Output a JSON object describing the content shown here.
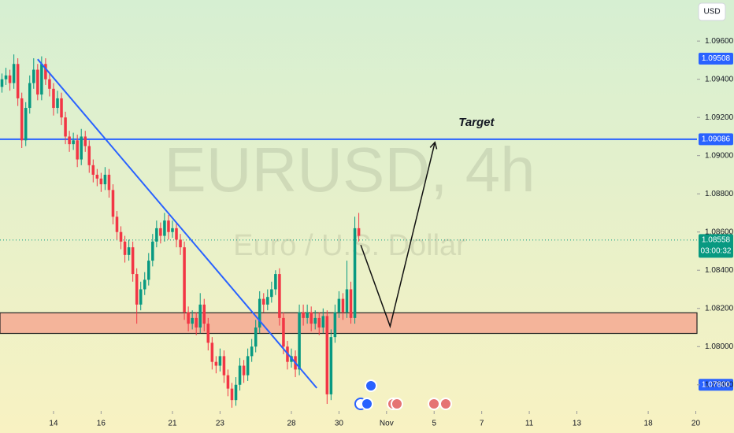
{
  "chart_data": {
    "type": "candlestick",
    "watermark": "EURUSD, 4h",
    "watermark_sub": "Euro / U.S. Dollar",
    "currency": "USD",
    "annotation": "Target",
    "countdown": "03:00:32",
    "up_color": "#089981",
    "down_color": "#f23645",
    "xlim": [
      -13.5,
      162.3
    ],
    "xticks": [
      {
        "value": 0,
        "label": "14"
      },
      {
        "value": 12,
        "label": "16"
      },
      {
        "value": 30,
        "label": "21"
      },
      {
        "value": 42,
        "label": "23"
      },
      {
        "value": 60,
        "label": "28"
      },
      {
        "value": 72,
        "label": "30"
      },
      {
        "value": 84,
        "label": "Nov"
      },
      {
        "value": 96,
        "label": "5"
      },
      {
        "value": 108,
        "label": "7"
      },
      {
        "value": 120,
        "label": "11"
      },
      {
        "value": 132,
        "label": "13"
      },
      {
        "value": 150,
        "label": "18"
      },
      {
        "value": 162,
        "label": "20"
      }
    ],
    "ylim": [
      1.07663,
      1.09815
    ],
    "yticks": [
      {
        "value": 1.078,
        "label": "1.07800"
      },
      {
        "value": 1.08,
        "label": "1.08000"
      },
      {
        "value": 1.082,
        "label": "1.08200"
      },
      {
        "value": 1.084,
        "label": "1.08400"
      },
      {
        "value": 1.086,
        "label": "1.08600"
      },
      {
        "value": 1.088,
        "label": "1.08800"
      },
      {
        "value": 1.09,
        "label": "1.09000"
      },
      {
        "value": 1.092,
        "label": "1.09200"
      },
      {
        "value": 1.094,
        "label": "1.09400"
      },
      {
        "value": 1.096,
        "label": "1.09600"
      }
    ],
    "price_tags": [
      {
        "value": 1.09508,
        "label": "1.09508",
        "color": "#2962ff"
      },
      {
        "value": 1.09086,
        "label": "1.09086",
        "color": "#2962ff"
      },
      {
        "value": 1.08558,
        "label": "1.08558",
        "color": "#089981"
      },
      {
        "value": 1.078,
        "label": "1.07800",
        "color": "#2962ff"
      }
    ],
    "hline": {
      "value": 1.09086,
      "color": "#2962ff"
    },
    "zone": {
      "from": 1.08069,
      "to": 1.08177,
      "color": "#f4b49a"
    },
    "trendline": {
      "x": [
        -4,
        66.4
      ],
      "y": [
        1.09505,
        1.07783
      ],
      "color": "#2962ff"
    },
    "projection": {
      "x": [
        77.5,
        84.9,
        96.2
      ],
      "y": [
        1.08532,
        1.08106,
        1.0907
      ]
    },
    "x": [
      -13,
      -12,
      -11,
      -10,
      -9,
      -8,
      -7,
      -6,
      -5,
      -4,
      -3,
      -2,
      -1,
      0,
      1,
      2,
      3,
      4,
      5,
      6,
      7,
      8,
      9,
      10,
      11,
      12,
      13,
      14,
      15,
      16,
      17,
      18,
      19,
      20,
      21,
      22,
      23,
      24,
      25,
      26,
      27,
      28,
      29,
      30,
      31,
      32,
      33,
      34,
      35,
      36,
      37,
      38,
      39,
      40,
      41,
      42,
      43,
      44,
      45,
      46,
      47,
      48,
      49,
      50,
      51,
      52,
      53,
      54,
      55,
      56,
      57,
      58,
      59,
      60,
      61,
      62,
      63,
      64,
      65,
      66,
      67,
      68,
      69,
      70,
      71,
      72,
      73,
      74,
      75,
      76,
      77
    ],
    "ohlc": [
      [
        1.0936,
        1.0943,
        1.0933,
        1.094
      ],
      [
        1.094,
        1.0946,
        1.0937,
        1.0942
      ],
      [
        1.0942,
        1.0945,
        1.0934,
        1.0938
      ],
      [
        1.0938,
        1.0953,
        1.0935,
        1.0948
      ],
      [
        1.0948,
        1.0951,
        1.0926,
        1.093
      ],
      [
        1.093,
        1.0933,
        1.0904,
        1.0908
      ],
      [
        1.0908,
        1.0928,
        1.0905,
        1.0925
      ],
      [
        1.0925,
        1.0942,
        1.0922,
        1.0938
      ],
      [
        1.0938,
        1.0951,
        1.0935,
        1.0945
      ],
      [
        1.0945,
        1.0948,
        1.0929,
        1.0932
      ],
      [
        1.0932,
        1.0952,
        1.0929,
        1.0948
      ],
      [
        1.0948,
        1.0951,
        1.0937,
        1.094
      ],
      [
        1.094,
        1.0943,
        1.0931,
        1.0935
      ],
      [
        1.0935,
        1.0938,
        1.0921,
        1.0925
      ],
      [
        1.0925,
        1.0934,
        1.0922,
        1.093
      ],
      [
        1.093,
        1.0933,
        1.0916,
        1.092
      ],
      [
        1.092,
        1.0923,
        1.0906,
        1.091
      ],
      [
        1.091,
        1.0913,
        1.0902,
        1.0906
      ],
      [
        1.0906,
        1.0912,
        1.0903,
        1.0908
      ],
      [
        1.0908,
        1.0911,
        1.0894,
        1.0898
      ],
      [
        1.0898,
        1.0914,
        1.0895,
        1.091
      ],
      [
        1.091,
        1.0913,
        1.0902,
        1.0905
      ],
      [
        1.0905,
        1.0908,
        1.0891,
        1.0895
      ],
      [
        1.0895,
        1.0898,
        1.0886,
        1.089
      ],
      [
        1.089,
        1.0893,
        1.0884,
        1.0888
      ],
      [
        1.0888,
        1.0891,
        1.0881,
        1.0885
      ],
      [
        1.0885,
        1.0894,
        1.0882,
        1.089
      ],
      [
        1.089,
        1.0893,
        1.0878,
        1.0882
      ],
      [
        1.0882,
        1.0885,
        1.0864,
        1.0868
      ],
      [
        1.0868,
        1.0871,
        1.0856,
        1.086
      ],
      [
        1.086,
        1.0863,
        1.0851,
        1.0855
      ],
      [
        1.0855,
        1.0858,
        1.0844,
        1.0848
      ],
      [
        1.0848,
        1.0856,
        1.0845,
        1.0852
      ],
      [
        1.0852,
        1.0855,
        1.0834,
        1.0838
      ],
      [
        1.0838,
        1.0841,
        1.0812,
        1.0822
      ],
      [
        1.0822,
        1.0834,
        1.0819,
        1.083
      ],
      [
        1.083,
        1.0839,
        1.0827,
        1.0835
      ],
      [
        1.0835,
        1.0849,
        1.0832,
        1.0845
      ],
      [
        1.0845,
        1.0859,
        1.0842,
        1.0855
      ],
      [
        1.0855,
        1.0866,
        1.0852,
        1.0862
      ],
      [
        1.0862,
        1.0865,
        1.0854,
        1.0858
      ],
      [
        1.0858,
        1.087,
        1.0855,
        1.0866
      ],
      [
        1.0866,
        1.0869,
        1.0856,
        1.086
      ],
      [
        1.086,
        1.0866,
        1.0857,
        1.0862
      ],
      [
        1.0862,
        1.0865,
        1.0852,
        1.0856
      ],
      [
        1.0856,
        1.0859,
        1.0848,
        1.0852
      ],
      [
        1.0852,
        1.0855,
        1.0814,
        1.0818
      ],
      [
        1.0818,
        1.0821,
        1.0808,
        1.0812
      ],
      [
        1.0812,
        1.0819,
        1.0809,
        1.0815
      ],
      [
        1.0815,
        1.0818,
        1.0806,
        1.081
      ],
      [
        1.081,
        1.0828,
        1.0807,
        1.0822
      ],
      [
        1.0822,
        1.0825,
        1.0808,
        1.0812
      ],
      [
        1.0812,
        1.0815,
        1.0798,
        1.0802
      ],
      [
        1.0802,
        1.0805,
        1.0788,
        1.0792
      ],
      [
        1.0792,
        1.0795,
        1.0786,
        1.079
      ],
      [
        1.079,
        1.0799,
        1.0787,
        1.0795
      ],
      [
        1.0795,
        1.0798,
        1.0781,
        1.0785
      ],
      [
        1.0785,
        1.0788,
        1.0774,
        1.0778
      ],
      [
        1.0778,
        1.0781,
        1.0768,
        1.0772
      ],
      [
        1.0772,
        1.0784,
        1.0769,
        1.078
      ],
      [
        1.078,
        1.0794,
        1.0777,
        1.079
      ],
      [
        1.079,
        1.0793,
        1.0781,
        1.0785
      ],
      [
        1.0785,
        1.0799,
        1.0782,
        1.0795
      ],
      [
        1.0795,
        1.0804,
        1.0792,
        1.08
      ],
      [
        1.08,
        1.0814,
        1.0797,
        1.081
      ],
      [
        1.081,
        1.0829,
        1.0807,
        1.0825
      ],
      [
        1.0825,
        1.0828,
        1.0818,
        1.0822
      ],
      [
        1.0822,
        1.083,
        1.0819,
        1.0826
      ],
      [
        1.0826,
        1.0834,
        1.0823,
        1.083
      ],
      [
        1.083,
        1.084,
        1.0827,
        1.0838
      ],
      [
        1.0838,
        1.0841,
        1.0811,
        1.0815
      ],
      [
        1.0815,
        1.0818,
        1.0796,
        1.08
      ],
      [
        1.08,
        1.0803,
        1.0788,
        1.0792
      ],
      [
        1.0792,
        1.0799,
        1.0789,
        1.0795
      ],
      [
        1.0795,
        1.0798,
        1.0784,
        1.0788
      ],
      [
        1.0788,
        1.0822,
        1.0785,
        1.0818
      ],
      [
        1.0818,
        1.0822,
        1.0811,
        1.0815
      ],
      [
        1.0815,
        1.0822,
        1.0812,
        1.0818
      ],
      [
        1.0818,
        1.0821,
        1.0808,
        1.0812
      ],
      [
        1.0812,
        1.0819,
        1.0809,
        1.0815
      ],
      [
        1.0815,
        1.0818,
        1.0806,
        1.081
      ],
      [
        1.081,
        1.082,
        1.0807,
        1.0816
      ],
      [
        1.0816,
        1.0819,
        1.077,
        1.0775
      ],
      [
        1.0775,
        1.0809,
        1.0772,
        1.0805
      ],
      [
        1.0805,
        1.0822,
        1.0802,
        1.0818
      ],
      [
        1.0818,
        1.0829,
        1.0815,
        1.0825
      ],
      [
        1.0825,
        1.0828,
        1.0814,
        1.0818
      ],
      [
        1.0818,
        1.0845,
        1.0815,
        1.083
      ],
      [
        1.083,
        1.0834,
        1.0812,
        1.0815
      ],
      [
        1.0815,
        1.0868,
        1.0812,
        1.0862
      ],
      [
        1.0862,
        1.087,
        1.0855,
        1.0858
      ]
    ]
  }
}
